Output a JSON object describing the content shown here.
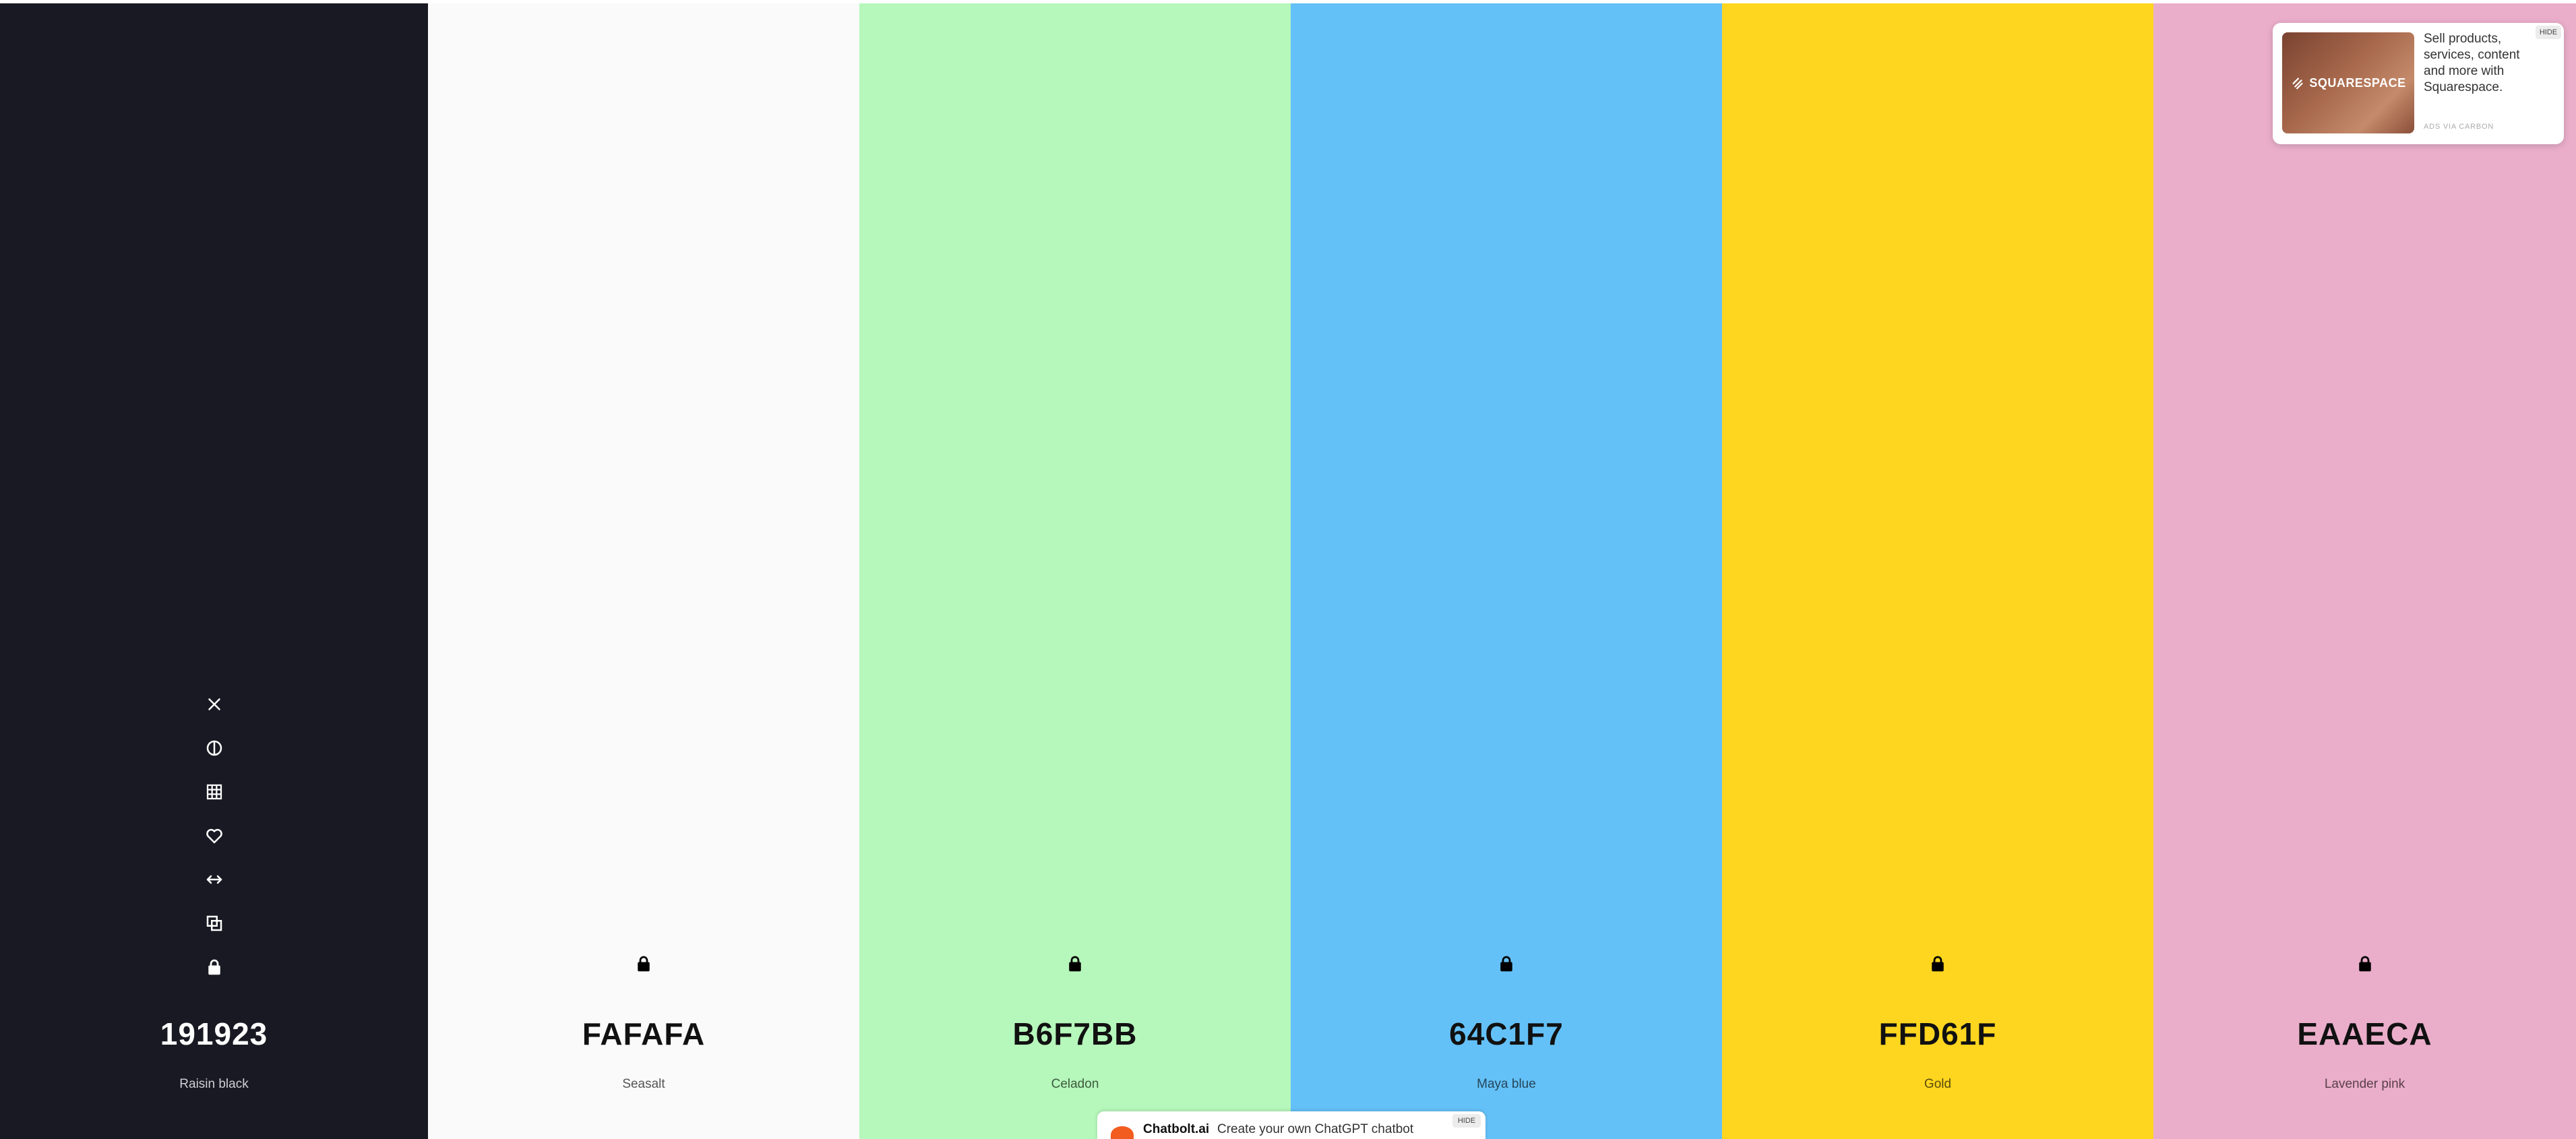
{
  "palette": [
    {
      "hex": "191923",
      "name": "Raisin black",
      "color": "#191923",
      "text_color": "#ffffff",
      "name_color": "#cfcfd4",
      "locked": false
    },
    {
      "hex": "FAFAFA",
      "name": "Seasalt",
      "color": "#FAFAFA",
      "text_color": "#111111",
      "name_color": "#555555",
      "locked": true
    },
    {
      "hex": "B6F7BB",
      "name": "Celadon",
      "color": "#B6F7BB",
      "text_color": "#111111",
      "name_color": "#3c5a3e",
      "locked": true
    },
    {
      "hex": "64C1F7",
      "name": "Maya blue",
      "color": "#64C1F7",
      "text_color": "#111111",
      "name_color": "#24465a",
      "locked": true
    },
    {
      "hex": "FFD61F",
      "name": "Gold",
      "color": "#FFD61F",
      "text_color": "#111111",
      "name_color": "#5a4b0a",
      "locked": true
    },
    {
      "hex": "EAAECA",
      "name": "Lavender pink",
      "color": "#EAAECA",
      "text_color": "#111111",
      "name_color": "#5a3f4b",
      "locked": true
    }
  ],
  "tools": [
    "close-icon",
    "contrast-icon",
    "shades-icon",
    "heart-icon",
    "drag-arrows-icon",
    "copy-icon",
    "lock-icon"
  ],
  "carbon_ad": {
    "image_logo": "SQUARESPACE",
    "text": "Sell products, services, content and more with Squarespace.",
    "via": "ADS VIA CARBON",
    "hide": "HIDE"
  },
  "bottom_ad": {
    "brand": "Chatbolt.ai",
    "text": "Create your own ChatGPT chatbot",
    "hide": "HIDE"
  }
}
